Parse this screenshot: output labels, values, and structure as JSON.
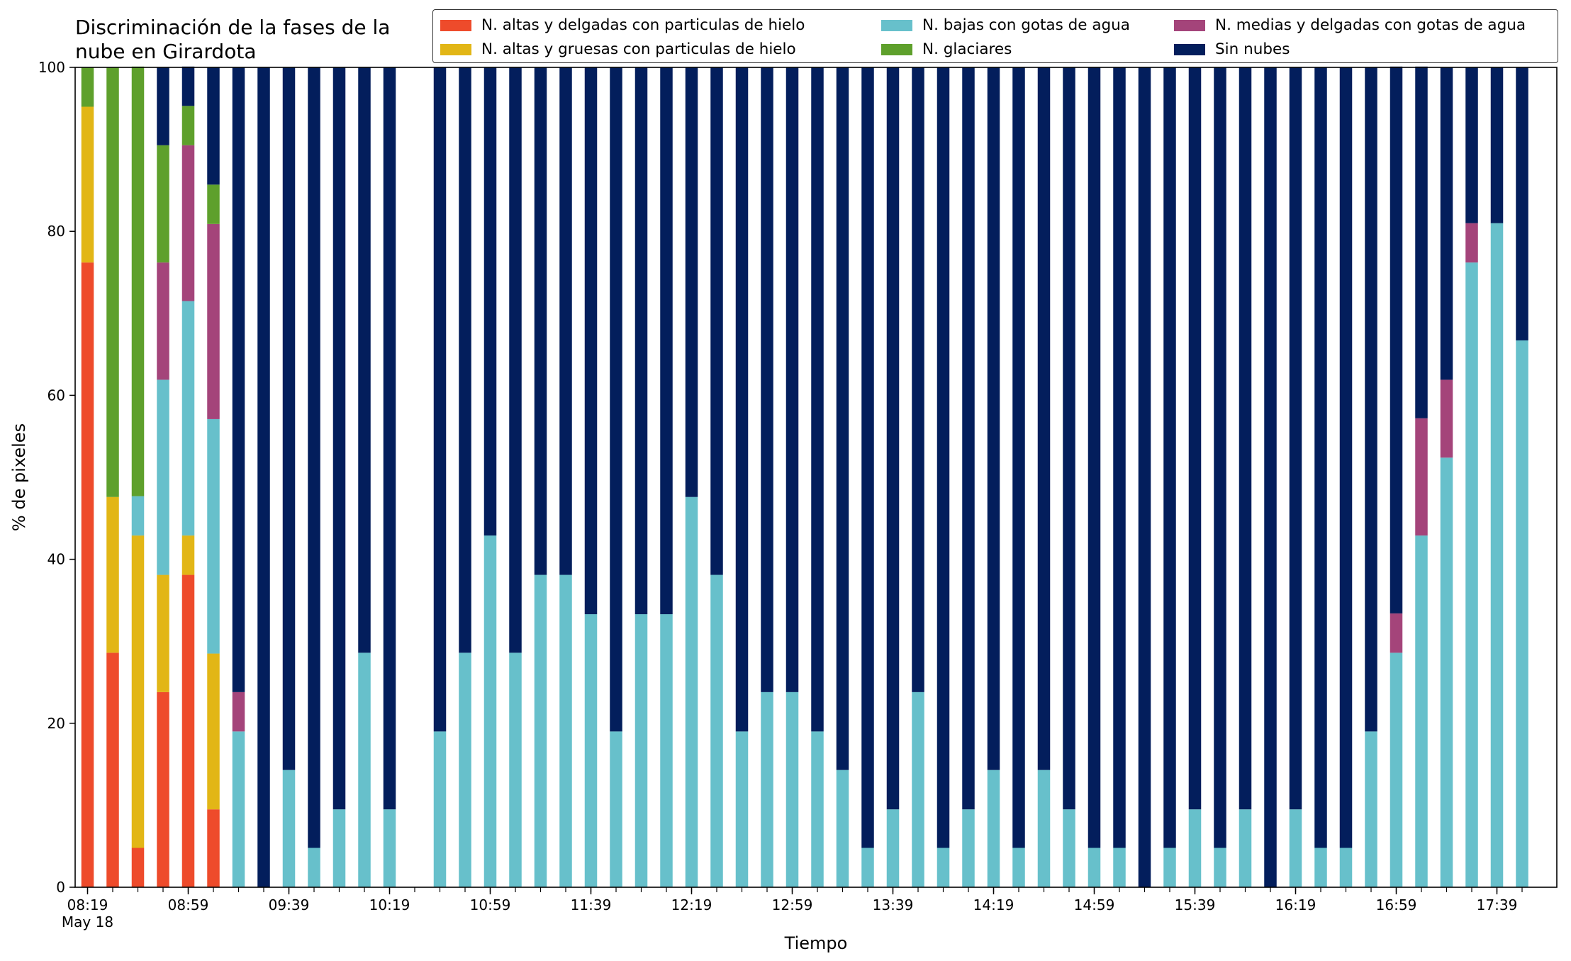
{
  "chart_data": {
    "type": "bar",
    "stacked": true,
    "title": "Discriminación de la fases de la nube en Girardota",
    "xlabel": "Tiempo",
    "ylabel": "% de pixeles",
    "ylim": [
      0,
      100
    ],
    "yticks": [
      0,
      20,
      40,
      60,
      80,
      100
    ],
    "x_tick_labels": [
      {
        "index": 0,
        "label": "08:19",
        "sublabel": "May 18"
      },
      {
        "index": 4,
        "label": "08:59"
      },
      {
        "index": 8,
        "label": "09:39"
      },
      {
        "index": 12,
        "label": "10:19"
      },
      {
        "index": 16,
        "label": "10:59"
      },
      {
        "index": 20,
        "label": "11:39"
      },
      {
        "index": 24,
        "label": "12:19"
      },
      {
        "index": 28,
        "label": "12:59"
      },
      {
        "index": 32,
        "label": "13:39"
      },
      {
        "index": 36,
        "label": "14:19"
      },
      {
        "index": 40,
        "label": "14:59"
      },
      {
        "index": 44,
        "label": "15:39"
      },
      {
        "index": 48,
        "label": "16:19"
      },
      {
        "index": 52,
        "label": "16:59"
      },
      {
        "index": 56,
        "label": "17:39"
      }
    ],
    "categories": [
      "08:19",
      "08:29",
      "08:39",
      "08:49",
      "08:59",
      "09:09",
      "09:19",
      "09:29",
      "09:39",
      "09:49",
      "09:59",
      "10:09",
      "10:19",
      "10:29",
      "10:39",
      "10:49",
      "10:59",
      "11:09",
      "11:19",
      "11:29",
      "11:39",
      "11:49",
      "11:59",
      "12:09",
      "12:19",
      "12:29",
      "12:39",
      "12:49",
      "12:59",
      "13:09",
      "13:19",
      "13:29",
      "13:39",
      "13:49",
      "13:59",
      "14:09",
      "14:19",
      "14:29",
      "14:39",
      "14:49",
      "14:59",
      "15:09",
      "15:19",
      "15:29",
      "15:39",
      "15:49",
      "15:59",
      "16:09",
      "16:19",
      "16:29",
      "16:39",
      "16:49",
      "16:59",
      "17:09",
      "17:19",
      "17:29",
      "17:39",
      "17:49"
    ],
    "series": [
      {
        "name": "N. altas y delgadas con particulas de hielo",
        "color": "#ee4b2b",
        "values": [
          76.2,
          28.6,
          4.8,
          23.8,
          38.1,
          9.5,
          0,
          0,
          0,
          0,
          0,
          0,
          0,
          0,
          0,
          0,
          0,
          0,
          0,
          0,
          0,
          0,
          0,
          0,
          0,
          0,
          0,
          0,
          0,
          0,
          0,
          0,
          0,
          0,
          0,
          0,
          0,
          0,
          0,
          0,
          0,
          0,
          0,
          0,
          0,
          0,
          0,
          0,
          0,
          0,
          0,
          0,
          0,
          0,
          0,
          0,
          0,
          0
        ]
      },
      {
        "name": "N. altas y gruesas con particulas de hielo",
        "color": "#e2b616",
        "values": [
          19.0,
          19.0,
          38.1,
          14.3,
          4.8,
          19.0,
          0,
          0,
          0,
          0,
          0,
          0,
          0,
          0,
          0,
          0,
          0,
          0,
          0,
          0,
          0,
          0,
          0,
          0,
          0,
          0,
          0,
          0,
          0,
          0,
          0,
          0,
          0,
          0,
          0,
          0,
          0,
          0,
          0,
          0,
          0,
          0,
          0,
          0,
          0,
          0,
          0,
          0,
          0,
          0,
          0,
          0,
          0,
          0,
          0,
          0,
          0,
          0
        ]
      },
      {
        "name": "N. bajas con gotas de agua",
        "color": "#67c0cb",
        "values": [
          0,
          0,
          4.8,
          23.8,
          28.6,
          28.6,
          19.0,
          0,
          14.3,
          4.8,
          9.5,
          28.6,
          9.5,
          0,
          19.0,
          28.6,
          42.9,
          28.6,
          38.1,
          38.1,
          33.3,
          19.0,
          33.3,
          33.3,
          47.6,
          38.1,
          19.0,
          23.8,
          23.8,
          19.0,
          14.3,
          4.8,
          9.5,
          23.8,
          4.8,
          9.5,
          14.3,
          4.8,
          14.3,
          9.5,
          4.8,
          4.8,
          0,
          4.8,
          9.5,
          4.8,
          9.5,
          0,
          9.5,
          4.8,
          4.8,
          19.0,
          28.6,
          42.9,
          52.4,
          76.2,
          81.0,
          66.7
        ]
      },
      {
        "name": "N. medias y delgadas con gotas de agua",
        "color": "#a4447a",
        "values": [
          0,
          0,
          0,
          14.3,
          19.0,
          23.8,
          4.8,
          0,
          0,
          0,
          0,
          0,
          0,
          0,
          0,
          0,
          0,
          0,
          0,
          0,
          0,
          0,
          0,
          0,
          0,
          0,
          0,
          0,
          0,
          0,
          0,
          0,
          0,
          0,
          0,
          0,
          0,
          0,
          0,
          0,
          0,
          0,
          0,
          0,
          0,
          0,
          0,
          0,
          0,
          0,
          0,
          0,
          4.8,
          14.3,
          9.5,
          4.8,
          0,
          0
        ]
      },
      {
        "name": "N. glaciares",
        "color": "#5ea02c",
        "values": [
          4.8,
          52.4,
          52.4,
          14.3,
          4.8,
          4.8,
          0,
          0,
          0,
          0,
          0,
          0,
          0,
          0,
          0,
          0,
          0,
          0,
          0,
          0,
          0,
          0,
          0,
          0,
          0,
          0,
          0,
          0,
          0,
          0,
          0,
          0,
          0,
          0,
          0,
          0,
          0,
          0,
          0,
          0,
          0,
          0,
          0,
          0,
          0,
          0,
          0,
          0,
          0,
          0,
          0,
          0,
          0,
          0,
          0,
          0,
          0,
          0
        ]
      },
      {
        "name": "Sin nubes",
        "color": "#031e5c",
        "values": [
          0,
          0,
          0,
          9.5,
          4.8,
          14.3,
          76.2,
          100,
          85.7,
          95.2,
          90.5,
          71.4,
          90.5,
          0,
          81.0,
          71.4,
          57.1,
          71.4,
          61.9,
          61.9,
          66.7,
          81.0,
          66.7,
          66.7,
          52.4,
          61.9,
          81.0,
          76.2,
          76.2,
          81.0,
          85.7,
          95.2,
          90.5,
          76.2,
          95.2,
          90.5,
          85.7,
          95.2,
          85.7,
          90.5,
          95.2,
          95.2,
          100,
          95.2,
          90.5,
          95.2,
          90.5,
          100,
          90.5,
          95.2,
          95.2,
          81.0,
          66.7,
          42.9,
          38.1,
          19.0,
          19.0,
          33.3
        ]
      }
    ],
    "legend": {
      "placement": "top",
      "columns": 3,
      "order": [
        "N. altas y delgadas con particulas de hielo",
        "N. altas y gruesas con particulas de hielo",
        "N. bajas con gotas de agua",
        "N. glaciares",
        "N. medias y delgadas con gotas de agua",
        "Sin nubes"
      ]
    },
    "grid": false
  }
}
